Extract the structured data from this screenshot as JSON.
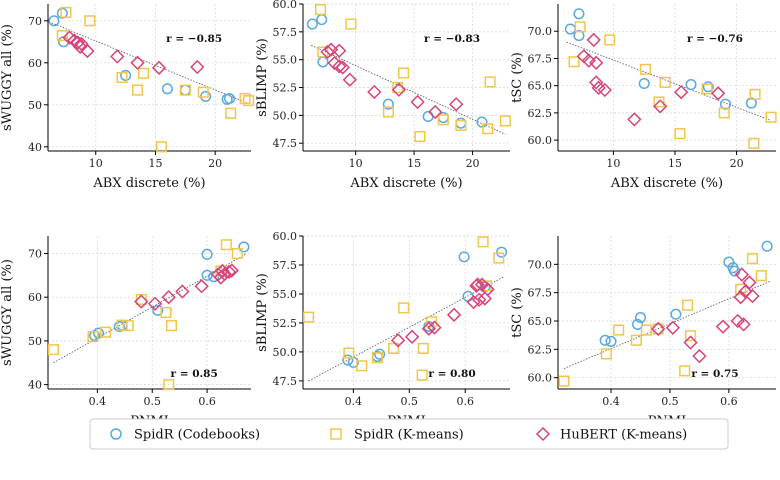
{
  "colors": {
    "spidr_codebooks": "#5aa9e0",
    "spidr_kmeans": "#f2c64a",
    "hubert_kmeans": "#d9437a"
  },
  "legend": {
    "items": [
      {
        "key": "spidr_codebooks",
        "label": "SpidR (Codebooks)",
        "marker": "circle"
      },
      {
        "key": "spidr_kmeans",
        "label": "SpidR (K-means)",
        "marker": "square"
      },
      {
        "key": "hubert_kmeans",
        "label": "HuBERT (K-means)",
        "marker": "diamond"
      }
    ]
  },
  "chart_data": [
    {
      "type": "scatter",
      "xlabel": "ABX discrete (%)",
      "ylabel": "sWUGGY all (%)",
      "annotation": "r = −0.85",
      "annotation_pos": "top-right",
      "xlim": [
        6,
        23
      ],
      "ylim": [
        39,
        74
      ],
      "xticks": [
        10,
        15,
        20
      ],
      "yticks": [
        40,
        50,
        60,
        70
      ],
      "xtick_labels": [
        "10",
        "15",
        "20"
      ],
      "ytick_labels": [
        "40",
        "50",
        "60",
        "70"
      ],
      "fit": [
        [
          6.3,
          69.5
        ],
        [
          22.8,
          50.3
        ]
      ],
      "series": [
        {
          "key": "spidr_codebooks",
          "points": [
            [
              6.5,
              70
            ],
            [
              7.2,
              71.8
            ],
            [
              7.3,
              65
            ],
            [
              12.5,
              57
            ],
            [
              16,
              53.8
            ],
            [
              17.5,
              53.5
            ],
            [
              19.2,
              52
            ],
            [
              21,
              51.3
            ],
            [
              21.2,
              51.5
            ]
          ]
        },
        {
          "key": "spidr_kmeans",
          "points": [
            [
              7.2,
              66.5
            ],
            [
              7.5,
              72
            ],
            [
              9.5,
              70
            ],
            [
              12.2,
              56.5
            ],
            [
              13.5,
              53.5
            ],
            [
              14,
              57.5
            ],
            [
              15.5,
              40
            ],
            [
              17.5,
              53.5
            ],
            [
              19,
              53
            ],
            [
              21.3,
              48
            ],
            [
              22.5,
              51.5
            ],
            [
              22.8,
              51
            ]
          ]
        },
        {
          "key": "hubert_kmeans",
          "points": [
            [
              7.8,
              66
            ],
            [
              8.2,
              65.3
            ],
            [
              8.5,
              64.8
            ],
            [
              8.8,
              64.5
            ],
            [
              8.7,
              63.8
            ],
            [
              9.3,
              62.8
            ],
            [
              11.8,
              61.5
            ],
            [
              13.5,
              60
            ],
            [
              15.3,
              58.8
            ],
            [
              18.5,
              59
            ]
          ]
        }
      ]
    },
    {
      "type": "scatter",
      "xlabel": "ABX discrete (%)",
      "ylabel": "sBLIMP (%)",
      "annotation": "r = −0.83",
      "annotation_pos": "top-right",
      "xlim": [
        5.5,
        23.2
      ],
      "ylim": [
        46.8,
        60
      ],
      "xticks": [
        10,
        15,
        20
      ],
      "yticks": [
        47.5,
        50,
        52.5,
        55,
        57.5,
        60
      ],
      "xtick_labels": [
        "10",
        "15",
        "20"
      ],
      "ytick_labels": [
        "47.5",
        "50.0",
        "52.5",
        "55.0",
        "57.5",
        "60.0"
      ],
      "fit": [
        [
          6.2,
          56.3
        ],
        [
          22.8,
          48.3
        ]
      ],
      "series": [
        {
          "key": "spidr_codebooks",
          "points": [
            [
              6.3,
              58.2
            ],
            [
              7.1,
              58.6
            ],
            [
              7.2,
              54.8
            ],
            [
              12.8,
              51
            ],
            [
              16.2,
              49.9
            ],
            [
              17.5,
              49.8
            ],
            [
              19,
              49.3
            ],
            [
              20.8,
              49.4
            ]
          ]
        },
        {
          "key": "spidr_kmeans",
          "points": [
            [
              7,
              59.5
            ],
            [
              7.2,
              55.7
            ],
            [
              9.6,
              58.2
            ],
            [
              12.8,
              50.3
            ],
            [
              13.6,
              52.5
            ],
            [
              14.1,
              53.8
            ],
            [
              15.5,
              48.1
            ],
            [
              17.5,
              49.6
            ],
            [
              19,
              49.1
            ],
            [
              21.3,
              48.8
            ],
            [
              21.5,
              53
            ],
            [
              22.8,
              49.5
            ]
          ]
        },
        {
          "key": "hubert_kmeans",
          "points": [
            [
              7.6,
              55.7
            ],
            [
              7.9,
              55.9
            ],
            [
              8.2,
              54.7
            ],
            [
              8.6,
              55.8
            ],
            [
              8.6,
              54.4
            ],
            [
              8.9,
              54.3
            ],
            [
              9.5,
              53.2
            ],
            [
              11.6,
              52.1
            ],
            [
              13.7,
              52.3
            ],
            [
              15.3,
              51.2
            ],
            [
              16.8,
              50.3
            ],
            [
              18.6,
              51
            ]
          ]
        }
      ]
    },
    {
      "type": "scatter",
      "xlabel": "ABX discrete (%)",
      "ylabel": "tSC (%)",
      "annotation": "r = −0.76",
      "annotation_pos": "top-right",
      "xlim": [
        5.5,
        23.2
      ],
      "ylim": [
        59,
        72.5
      ],
      "xticks": [
        10,
        15,
        20
      ],
      "yticks": [
        60,
        62.5,
        65,
        67.5,
        70
      ],
      "xtick_labels": [
        "10",
        "15",
        "20"
      ],
      "ytick_labels": [
        "60.0",
        "62.5",
        "65.0",
        "67.5",
        "70.0"
      ],
      "fit": [
        [
          6.2,
          69
        ],
        [
          22.8,
          61.8
        ]
      ],
      "series": [
        {
          "key": "spidr_codebooks",
          "points": [
            [
              6.5,
              70.2
            ],
            [
              7.2,
              71.6
            ],
            [
              7.2,
              69.6
            ],
            [
              12.5,
              65.2
            ],
            [
              16.3,
              65.1
            ],
            [
              17.7,
              64.9
            ],
            [
              19.1,
              63.3
            ],
            [
              21.2,
              63.4
            ]
          ]
        },
        {
          "key": "spidr_kmeans",
          "points": [
            [
              6.8,
              67.2
            ],
            [
              7.3,
              70.4
            ],
            [
              9.7,
              69.2
            ],
            [
              12.6,
              66.5
            ],
            [
              13.7,
              63.5
            ],
            [
              14.2,
              65.3
            ],
            [
              15.4,
              60.6
            ],
            [
              17.6,
              64.7
            ],
            [
              19,
              62.5
            ],
            [
              21.4,
              59.7
            ],
            [
              21.5,
              64.2
            ],
            [
              22.8,
              62.1
            ]
          ]
        },
        {
          "key": "hubert_kmeans",
          "points": [
            [
              7.6,
              67.7
            ],
            [
              8,
              67.3
            ],
            [
              8.4,
              69.2
            ],
            [
              8.6,
              65.3
            ],
            [
              8.8,
              64.8
            ],
            [
              8.6,
              67.1
            ],
            [
              9.3,
              64.6
            ],
            [
              11.7,
              61.9
            ],
            [
              13.8,
              63.1
            ],
            [
              15.5,
              64.4
            ],
            [
              18.5,
              64.3
            ]
          ]
        }
      ]
    },
    {
      "type": "scatter",
      "xlabel": "PNMI",
      "ylabel": "sWUGGY all (%)",
      "annotation": "r = 0.85",
      "annotation_pos": "bottom-right",
      "xlim": [
        0.31,
        0.68
      ],
      "ylim": [
        39,
        74
      ],
      "xticks": [
        0.4,
        0.5,
        0.6
      ],
      "yticks": [
        40,
        50,
        60,
        70
      ],
      "xtick_labels": [
        "0.4",
        "0.5",
        "0.6"
      ],
      "ytick_labels": [
        "40",
        "50",
        "60",
        "70"
      ],
      "fit": [
        [
          0.32,
          45
        ],
        [
          0.67,
          69.8
        ]
      ],
      "series": [
        {
          "key": "spidr_codebooks",
          "points": [
            [
              0.395,
              51.2
            ],
            [
              0.402,
              51.8
            ],
            [
              0.44,
              53.3
            ],
            [
              0.445,
              53.6
            ],
            [
              0.51,
              57
            ],
            [
              0.6,
              69.8
            ],
            [
              0.6,
              65
            ],
            [
              0.612,
              64.7
            ],
            [
              0.667,
              71.5
            ]
          ]
        },
        {
          "key": "spidr_kmeans",
          "points": [
            [
              0.32,
              48
            ],
            [
              0.392,
              51
            ],
            [
              0.415,
              52
            ],
            [
              0.445,
              53.6
            ],
            [
              0.456,
              53.5
            ],
            [
              0.48,
              59.5
            ],
            [
              0.53,
              40
            ],
            [
              0.525,
              56.5
            ],
            [
              0.535,
              53.5
            ],
            [
              0.625,
              66
            ],
            [
              0.635,
              72
            ],
            [
              0.655,
              70
            ]
          ]
        },
        {
          "key": "hubert_kmeans",
          "points": [
            [
              0.48,
              59
            ],
            [
              0.505,
              58.5
            ],
            [
              0.53,
              60
            ],
            [
              0.555,
              61.3
            ],
            [
              0.59,
              62.5
            ],
            [
              0.62,
              65.2
            ],
            [
              0.625,
              64.5
            ],
            [
              0.628,
              66
            ],
            [
              0.632,
              65.3
            ],
            [
              0.64,
              65.8
            ],
            [
              0.645,
              66.1
            ]
          ]
        }
      ]
    },
    {
      "type": "scatter",
      "xlabel": "PNMI",
      "ylabel": "sBLIMP (%)",
      "annotation": "r = 0.80",
      "annotation_pos": "bottom-right",
      "xlim": [
        0.31,
        0.68
      ],
      "ylim": [
        46.8,
        60
      ],
      "xticks": [
        0.4,
        0.5,
        0.6
      ],
      "yticks": [
        47.5,
        50,
        52.5,
        55,
        57.5,
        60
      ],
      "xtick_labels": [
        "0.4",
        "0.5",
        "0.6"
      ],
      "ytick_labels": [
        "47.5",
        "50.0",
        "52.5",
        "55.0",
        "57.5",
        "60.0"
      ],
      "fit": [
        [
          0.32,
          47.5
        ],
        [
          0.67,
          56.5
        ]
      ],
      "series": [
        {
          "key": "spidr_codebooks",
          "points": [
            [
              0.39,
              49.3
            ],
            [
              0.4,
              49.1
            ],
            [
              0.443,
              49.6
            ],
            [
              0.447,
              49.8
            ],
            [
              0.535,
              52.2
            ],
            [
              0.598,
              58.2
            ],
            [
              0.605,
              54.8
            ],
            [
              0.635,
              55.6
            ],
            [
              0.665,
              58.6
            ]
          ]
        },
        {
          "key": "spidr_kmeans",
          "points": [
            [
              0.32,
              53
            ],
            [
              0.392,
              49.9
            ],
            [
              0.415,
              48.8
            ],
            [
              0.443,
              49.5
            ],
            [
              0.472,
              50.3
            ],
            [
              0.49,
              53.8
            ],
            [
              0.523,
              48
            ],
            [
              0.525,
              50.3
            ],
            [
              0.54,
              52.6
            ],
            [
              0.632,
              59.5
            ],
            [
              0.638,
              55.7
            ],
            [
              0.66,
              58.1
            ]
          ]
        },
        {
          "key": "hubert_kmeans",
          "points": [
            [
              0.48,
              51
            ],
            [
              0.505,
              51.3
            ],
            [
              0.535,
              52
            ],
            [
              0.545,
              52.1
            ],
            [
              0.58,
              53.2
            ],
            [
              0.615,
              54.3
            ],
            [
              0.62,
              55.7
            ],
            [
              0.622,
              55.8
            ],
            [
              0.625,
              54.5
            ],
            [
              0.63,
              55.8
            ],
            [
              0.635,
              54.6
            ],
            [
              0.64,
              55.4
            ]
          ]
        }
      ]
    },
    {
      "type": "scatter",
      "xlabel": "PNMI",
      "ylabel": "tSC (%)",
      "annotation": "r = 0.75",
      "annotation_pos": "bottom-right",
      "xlim": [
        0.31,
        0.68
      ],
      "ylim": [
        59,
        72.5
      ],
      "xticks": [
        0.4,
        0.5,
        0.6
      ],
      "yticks": [
        60,
        62.5,
        65,
        67.5,
        70
      ],
      "xtick_labels": [
        "0.4",
        "0.5",
        "0.6"
      ],
      "ytick_labels": [
        "60.0",
        "62.5",
        "65.0",
        "67.5",
        "70.0"
      ],
      "fit": [
        [
          0.32,
          60.8
        ],
        [
          0.67,
          68.5
        ]
      ],
      "series": [
        {
          "key": "spidr_codebooks",
          "points": [
            [
              0.39,
              63.3
            ],
            [
              0.4,
              63.2
            ],
            [
              0.445,
              64.7
            ],
            [
              0.45,
              65.3
            ],
            [
              0.51,
              65.6
            ],
            [
              0.6,
              70.2
            ],
            [
              0.607,
              69.7
            ],
            [
              0.61,
              69.4
            ],
            [
              0.665,
              71.6
            ]
          ]
        },
        {
          "key": "spidr_kmeans",
          "points": [
            [
              0.32,
              59.7
            ],
            [
              0.392,
              62.1
            ],
            [
              0.413,
              64.2
            ],
            [
              0.443,
              63.3
            ],
            [
              0.46,
              64.2
            ],
            [
              0.48,
              64.3
            ],
            [
              0.525,
              60.6
            ],
            [
              0.53,
              66.4
            ],
            [
              0.535,
              63.7
            ],
            [
              0.62,
              67.8
            ],
            [
              0.64,
              70.5
            ],
            [
              0.655,
              69
            ]
          ]
        },
        {
          "key": "hubert_kmeans",
          "points": [
            [
              0.48,
              64.3
            ],
            [
              0.505,
              64.4
            ],
            [
              0.535,
              63.1
            ],
            [
              0.55,
              61.9
            ],
            [
              0.59,
              64.5
            ],
            [
              0.615,
              65
            ],
            [
              0.62,
              67.1
            ],
            [
              0.622,
              69.1
            ],
            [
              0.628,
              67.6
            ],
            [
              0.625,
              64.7
            ],
            [
              0.635,
              68.4
            ],
            [
              0.64,
              67.2
            ]
          ]
        }
      ]
    }
  ]
}
